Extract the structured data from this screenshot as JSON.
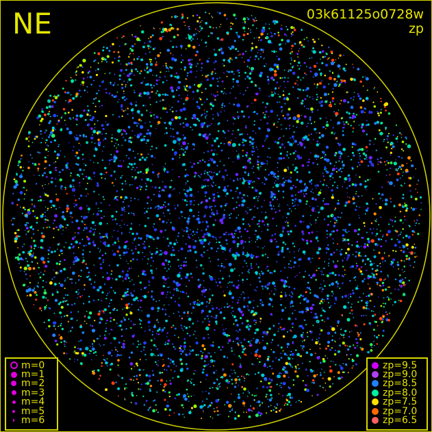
{
  "direction_label": "NE",
  "title": {
    "frame_id": "03k61125o0728w",
    "quantity": "zp"
  },
  "magnitude_legend": [
    {
      "label": "m=0",
      "hollow": true
    },
    {
      "label": "m=1"
    },
    {
      "label": "m=2"
    },
    {
      "label": "m=3"
    },
    {
      "label": "m=4"
    },
    {
      "label": "m=5"
    },
    {
      "label": "m=6"
    }
  ],
  "magnitude_symbol_color": "#e000e0",
  "zp_legend": [
    {
      "label": "zp=9.5",
      "color": "#d000ff"
    },
    {
      "label": "zp=9.0",
      "color": "#b040f0"
    },
    {
      "label": "zp=8.5",
      "color": "#2080ff"
    },
    {
      "label": "zp=8.0",
      "color": "#00f0a0"
    },
    {
      "label": "zp=7.5",
      "color": "#ffe000"
    },
    {
      "label": "zp=7.0",
      "color": "#ff6a00"
    },
    {
      "label": "zp=6.5",
      "color": "#ff6060"
    }
  ],
  "horizon_color": "#d8d800",
  "text_color": "#e6e600"
}
